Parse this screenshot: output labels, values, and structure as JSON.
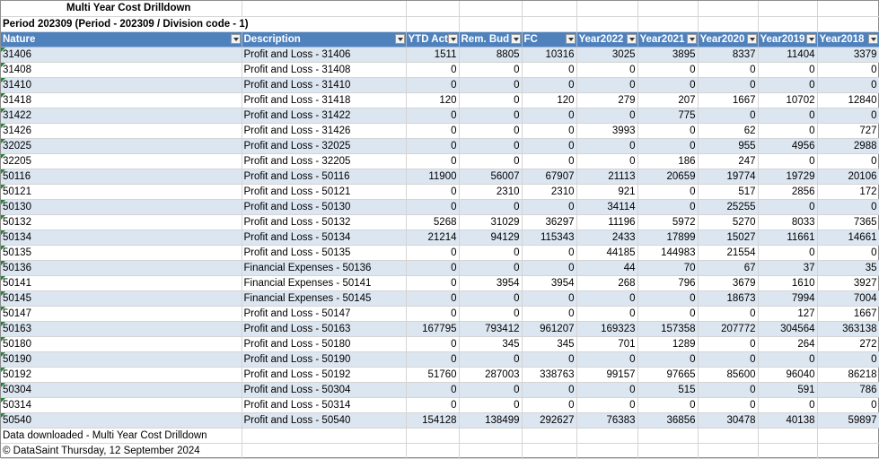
{
  "report": {
    "title": "Multi Year Cost Drilldown",
    "subtitle": "Period 202309 (Period - 202309 / Division code - 1)"
  },
  "columns": [
    "Nature",
    "Description",
    "YTD Act",
    "Rem. Bud",
    "FC",
    "Year2022",
    "Year2021",
    "Year2020",
    "Year2019",
    "Year2018"
  ],
  "rows": [
    [
      "31406",
      "Profit and Loss - 31406",
      "1511",
      "8805",
      "10316",
      "3025",
      "3895",
      "8337",
      "11404",
      "3379"
    ],
    [
      "31408",
      "Profit and Loss - 31408",
      "0",
      "0",
      "0",
      "0",
      "0",
      "0",
      "0",
      "0"
    ],
    [
      "31410",
      "Profit and Loss - 31410",
      "0",
      "0",
      "0",
      "0",
      "0",
      "0",
      "0",
      "0"
    ],
    [
      "31418",
      "Profit and Loss - 31418",
      "120",
      "0",
      "120",
      "279",
      "207",
      "1667",
      "10702",
      "12840"
    ],
    [
      "31422",
      "Profit and Loss - 31422",
      "0",
      "0",
      "0",
      "0",
      "775",
      "0",
      "0",
      "0"
    ],
    [
      "31426",
      "Profit and Loss - 31426",
      "0",
      "0",
      "0",
      "3993",
      "0",
      "62",
      "0",
      "727"
    ],
    [
      "32025",
      "Profit and Loss - 32025",
      "0",
      "0",
      "0",
      "0",
      "0",
      "955",
      "4956",
      "2988"
    ],
    [
      "32205",
      "Profit and Loss - 32205",
      "0",
      "0",
      "0",
      "0",
      "186",
      "247",
      "0",
      "0"
    ],
    [
      "50116",
      "Profit and Loss - 50116",
      "11900",
      "56007",
      "67907",
      "21113",
      "20659",
      "19774",
      "19729",
      "20106"
    ],
    [
      "50121",
      "Profit and Loss - 50121",
      "0",
      "2310",
      "2310",
      "921",
      "0",
      "517",
      "2856",
      "172"
    ],
    [
      "50130",
      "Profit and Loss - 50130",
      "0",
      "0",
      "0",
      "34114",
      "0",
      "25255",
      "0",
      "0"
    ],
    [
      "50132",
      "Profit and Loss - 50132",
      "5268",
      "31029",
      "36297",
      "11196",
      "5972",
      "5270",
      "8033",
      "7365"
    ],
    [
      "50134",
      "Profit and Loss - 50134",
      "21214",
      "94129",
      "115343",
      "2433",
      "17899",
      "15027",
      "11661",
      "14661"
    ],
    [
      "50135",
      "Profit and Loss - 50135",
      "0",
      "0",
      "0",
      "44185",
      "144983",
      "21554",
      "0",
      "0"
    ],
    [
      "50136",
      "Financial Expenses - 50136",
      "0",
      "0",
      "0",
      "44",
      "70",
      "67",
      "37",
      "35"
    ],
    [
      "50141",
      "Financial Expenses - 50141",
      "0",
      "3954",
      "3954",
      "268",
      "796",
      "3679",
      "1610",
      "3927"
    ],
    [
      "50145",
      "Financial Expenses - 50145",
      "0",
      "0",
      "0",
      "0",
      "0",
      "18673",
      "7994",
      "7004"
    ],
    [
      "50147",
      "Profit and Loss - 50147",
      "0",
      "0",
      "0",
      "0",
      "0",
      "0",
      "127",
      "1667"
    ],
    [
      "50163",
      "Profit and Loss - 50163",
      "167795",
      "793412",
      "961207",
      "169323",
      "157358",
      "207772",
      "304564",
      "363138"
    ],
    [
      "50180",
      "Profit and Loss - 50180",
      "0",
      "345",
      "345",
      "701",
      "1289",
      "0",
      "264",
      "272"
    ],
    [
      "50190",
      "Profit and Loss - 50190",
      "0",
      "0",
      "0",
      "0",
      "0",
      "0",
      "0",
      "0"
    ],
    [
      "50192",
      "Profit and Loss - 50192",
      "51760",
      "287003",
      "338763",
      "99157",
      "97665",
      "85600",
      "96040",
      "86218"
    ],
    [
      "50304",
      "Profit and Loss - 50304",
      "0",
      "0",
      "0",
      "0",
      "515",
      "0",
      "591",
      "786"
    ],
    [
      "50314",
      "Profit and Loss - 50314",
      "0",
      "0",
      "0",
      "0",
      "0",
      "0",
      "0",
      "0"
    ],
    [
      "50540",
      "Profit and Loss - 50540",
      "154128",
      "138499",
      "292627",
      "76383",
      "36856",
      "30478",
      "40138",
      "59897"
    ]
  ],
  "footer": {
    "note": "Data downloaded - Multi Year Cost Drilldown",
    "copyright": "© DataSaint Thursday, 12 September 2024"
  },
  "colors": {
    "header_bg": "#4f81bd",
    "band_bg": "#dce6f1",
    "triangle": "#1b8a2e"
  }
}
